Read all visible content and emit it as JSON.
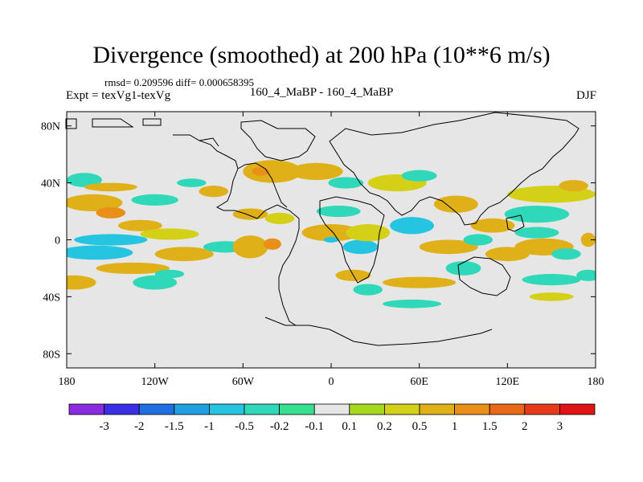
{
  "chart_data": {
    "type": "heatmap",
    "title": "Divergence (smoothed) at 200 hPa (10**6 m/s)",
    "stats_line": "rmsd= 0.209596 diff= 0.000658395",
    "left_label": "Expt = texVg1-texVg",
    "center_label": "160_4_MaBP - 160_4_MaBP",
    "right_label": "DJF",
    "x_range": [
      -180,
      180
    ],
    "y_range": [
      -90,
      90
    ],
    "x_ticks": [
      {
        "value": -180,
        "label": "180"
      },
      {
        "value": -120,
        "label": "120W"
      },
      {
        "value": -60,
        "label": "60W"
      },
      {
        "value": 0,
        "label": "0"
      },
      {
        "value": 60,
        "label": "60E"
      },
      {
        "value": 120,
        "label": "120E"
      },
      {
        "value": 180,
        "label": "180"
      }
    ],
    "y_ticks": [
      {
        "value": 80,
        "label": "80N"
      },
      {
        "value": 40,
        "label": "40N"
      },
      {
        "value": 0,
        "label": "0"
      },
      {
        "value": -40,
        "label": "40S"
      },
      {
        "value": -80,
        "label": "80S"
      }
    ],
    "colorbar": {
      "levels": [
        "-3",
        "-2",
        "-1.5",
        "-1",
        "-0.5",
        "-0.2",
        "-0.1",
        "0.1",
        "0.2",
        "0.5",
        "1",
        "1.5",
        "2",
        "3"
      ],
      "colors": [
        "#8a2be2",
        "#3a2ee6",
        "#1e6fe0",
        "#1fa0e0",
        "#25c4e0",
        "#2fd8b8",
        "#36e090",
        "#e6e6e6",
        "#a6d81e",
        "#d4d018",
        "#e0b018",
        "#e89018",
        "#e86818",
        "#e83a18",
        "#e01414"
      ]
    },
    "features": [
      {
        "lon": -162,
        "lat": 26,
        "rx": 20,
        "ry": 6,
        "value": 0.8
      },
      {
        "lon": -150,
        "lat": 19,
        "rx": 10,
        "ry": 4,
        "value": 1.3
      },
      {
        "lon": -150,
        "lat": 0,
        "rx": 25,
        "ry": 4,
        "value": -0.6
      },
      {
        "lon": -160,
        "lat": -9,
        "rx": 25,
        "ry": 5,
        "value": -0.9
      },
      {
        "lon": -135,
        "lat": -20,
        "rx": 25,
        "ry": 4,
        "value": 0.7
      },
      {
        "lon": -175,
        "lat": -30,
        "rx": 15,
        "ry": 5,
        "value": 0.6
      },
      {
        "lon": -168,
        "lat": 42,
        "rx": 12,
        "ry": 5,
        "value": -0.4
      },
      {
        "lon": -150,
        "lat": 37,
        "rx": 18,
        "ry": 3,
        "value": 0.5
      },
      {
        "lon": -130,
        "lat": 10,
        "rx": 15,
        "ry": 4,
        "value": 0.5
      },
      {
        "lon": -110,
        "lat": 4,
        "rx": 20,
        "ry": 4,
        "value": 0.4
      },
      {
        "lon": -100,
        "lat": -10,
        "rx": 20,
        "ry": 5,
        "value": 0.9
      },
      {
        "lon": -110,
        "lat": -24,
        "rx": 10,
        "ry": 3,
        "value": -0.5
      },
      {
        "lon": -120,
        "lat": -30,
        "rx": 15,
        "ry": 5,
        "value": -0.4
      },
      {
        "lon": -120,
        "lat": 28,
        "rx": 16,
        "ry": 4,
        "value": -0.4
      },
      {
        "lon": -95,
        "lat": 40,
        "rx": 10,
        "ry": 3,
        "value": -0.3
      },
      {
        "lon": -80,
        "lat": 34,
        "rx": 10,
        "ry": 4,
        "value": 0.6
      },
      {
        "lon": -72,
        "lat": -5,
        "rx": 15,
        "ry": 4,
        "value": -0.4
      },
      {
        "lon": -55,
        "lat": -5,
        "rx": 12,
        "ry": 8,
        "value": 0.8
      },
      {
        "lon": -40,
        "lat": -3,
        "rx": 6,
        "ry": 4,
        "value": 1.3
      },
      {
        "lon": -55,
        "lat": 18,
        "rx": 12,
        "ry": 4,
        "value": 0.5
      },
      {
        "lon": -35,
        "lat": 15,
        "rx": 10,
        "ry": 4,
        "value": 0.4
      },
      {
        "lon": -40,
        "lat": 48,
        "rx": 20,
        "ry": 8,
        "value": 0.6
      },
      {
        "lon": -48,
        "lat": 48,
        "rx": 6,
        "ry": 3,
        "value": 1.2
      },
      {
        "lon": -10,
        "lat": 48,
        "rx": 18,
        "ry": 6,
        "value": 0.5
      },
      {
        "lon": 10,
        "lat": 40,
        "rx": 12,
        "ry": 4,
        "value": -0.3
      },
      {
        "lon": 5,
        "lat": 20,
        "rx": 15,
        "ry": 4,
        "value": -0.4
      },
      {
        "lon": 0,
        "lat": 5,
        "rx": 20,
        "ry": 6,
        "value": 0.5
      },
      {
        "lon": 0,
        "lat": 0,
        "rx": 5,
        "ry": 2,
        "value": -1.0
      },
      {
        "lon": 20,
        "lat": -5,
        "rx": 12,
        "ry": 5,
        "value": -0.6
      },
      {
        "lon": 15,
        "lat": -25,
        "rx": 12,
        "ry": 4,
        "value": 0.6
      },
      {
        "lon": 25,
        "lat": -35,
        "rx": 10,
        "ry": 4,
        "value": -0.3
      },
      {
        "lon": 25,
        "lat": 5,
        "rx": 15,
        "ry": 6,
        "value": 0.4
      },
      {
        "lon": 55,
        "lat": 10,
        "rx": 15,
        "ry": 6,
        "value": -0.6
      },
      {
        "lon": 60,
        "lat": -30,
        "rx": 25,
        "ry": 4,
        "value": 0.6
      },
      {
        "lon": 55,
        "lat": -45,
        "rx": 20,
        "ry": 3,
        "value": -0.3
      },
      {
        "lon": 45,
        "lat": 40,
        "rx": 20,
        "ry": 6,
        "value": 0.4
      },
      {
        "lon": 60,
        "lat": 45,
        "rx": 12,
        "ry": 4,
        "value": -0.3
      },
      {
        "lon": 85,
        "lat": 25,
        "rx": 15,
        "ry": 6,
        "value": 0.5
      },
      {
        "lon": 80,
        "lat": -5,
        "rx": 20,
        "ry": 5,
        "value": 0.5
      },
      {
        "lon": 90,
        "lat": -20,
        "rx": 12,
        "ry": 5,
        "value": -0.4
      },
      {
        "lon": 100,
        "lat": 0,
        "rx": 10,
        "ry": 4,
        "value": -0.5
      },
      {
        "lon": 110,
        "lat": 10,
        "rx": 15,
        "ry": 5,
        "value": 0.5
      },
      {
        "lon": 120,
        "lat": -10,
        "rx": 15,
        "ry": 5,
        "value": 0.5
      },
      {
        "lon": 140,
        "lat": 5,
        "rx": 15,
        "ry": 4,
        "value": -0.4
      },
      {
        "lon": 140,
        "lat": 18,
        "rx": 22,
        "ry": 6,
        "value": -0.5
      },
      {
        "lon": 145,
        "lat": -5,
        "rx": 20,
        "ry": 6,
        "value": 0.5
      },
      {
        "lon": 150,
        "lat": -28,
        "rx": 20,
        "ry": 4,
        "value": -0.4
      },
      {
        "lon": 150,
        "lat": -40,
        "rx": 15,
        "ry": 3,
        "value": 0.4
      },
      {
        "lon": 160,
        "lat": -10,
        "rx": 10,
        "ry": 4,
        "value": -0.3
      },
      {
        "lon": 150,
        "lat": 32,
        "rx": 30,
        "ry": 6,
        "value": 0.4
      },
      {
        "lon": 165,
        "lat": 38,
        "rx": 10,
        "ry": 4,
        "value": 0.8
      },
      {
        "lon": 175,
        "lat": 0,
        "rx": 5,
        "ry": 5,
        "value": 0.8
      },
      {
        "lon": 175,
        "lat": -25,
        "rx": 8,
        "ry": 4,
        "value": -0.3
      }
    ]
  }
}
